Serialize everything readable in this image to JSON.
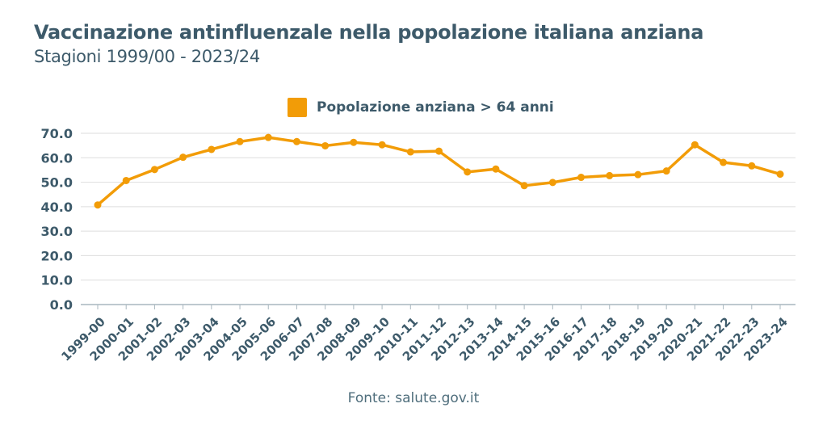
{
  "chart_data": {
    "type": "line",
    "title": "Vaccinazione antinfluenzale nella popolazione italiana anziana",
    "subtitle": "Stagioni 1999/00 - 2023/24",
    "source": "Fonte: salute.gov.it",
    "categories": [
      "1999-00",
      "2000-01",
      "2001-02",
      "2002-03",
      "2003-04",
      "2004-05",
      "2005-06",
      "2006-07",
      "2007-08",
      "2008-09",
      "2009-10",
      "2010-11",
      "2011-12",
      "2012-13",
      "2013-14",
      "2014-15",
      "2015-16",
      "2016-17",
      "2017-18",
      "2018-19",
      "2019-20",
      "2020-21",
      "2021-22",
      "2022-23",
      "2023-24"
    ],
    "series": [
      {
        "name": "Popolazione anziana > 64 anni",
        "color": "#f29c07",
        "values": [
          40.7,
          50.7,
          55.2,
          60.2,
          63.4,
          66.6,
          68.3,
          66.6,
          64.9,
          66.3,
          65.3,
          62.4,
          62.7,
          54.2,
          55.4,
          48.6,
          49.9,
          52.0,
          52.7,
          53.1,
          54.6,
          65.3,
          58.1,
          56.7,
          53.3
        ]
      }
    ],
    "yticks": [
      "0.0",
      "10.0",
      "20.0",
      "30.0",
      "40.0",
      "50.0",
      "60.0",
      "70.0"
    ],
    "ylim": [
      0,
      70
    ],
    "grid": true,
    "legend_position": "top-center"
  }
}
